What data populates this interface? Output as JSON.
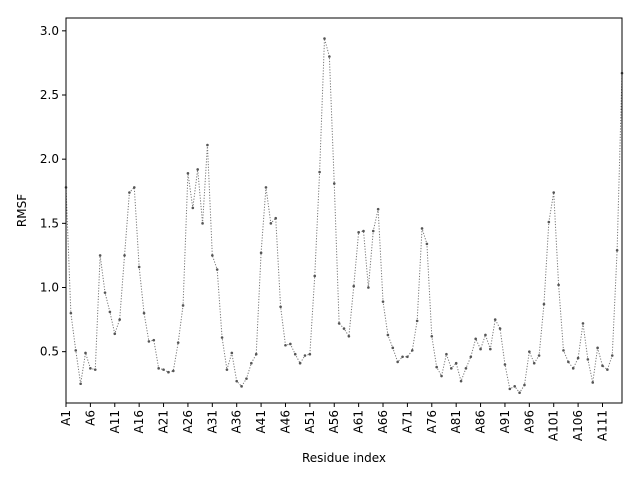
{
  "chart_data": {
    "type": "line",
    "title": "",
    "xlabel": "Residue index",
    "ylabel": "RMSF",
    "x_tick_labels": [
      "A1",
      "A6",
      "A11",
      "A16",
      "A21",
      "A26",
      "A31",
      "A36",
      "A41",
      "A46",
      "A51",
      "A56",
      "A61",
      "A66",
      "A71",
      "A76",
      "A81",
      "A86",
      "A91",
      "A96",
      "A101",
      "A106",
      "A111"
    ],
    "x_tick_positions": [
      1,
      6,
      11,
      16,
      21,
      26,
      31,
      36,
      41,
      46,
      51,
      56,
      61,
      66,
      71,
      76,
      81,
      86,
      91,
      96,
      101,
      106,
      111
    ],
    "xlim": [
      1,
      115
    ],
    "y_ticks": [
      0.5,
      1.0,
      1.5,
      2.0,
      2.5,
      3.0
    ],
    "y_tick_labels": [
      "0.5",
      "1.0",
      "1.5",
      "2.0",
      "2.5",
      "3.0"
    ],
    "ylim": [
      0.1,
      3.1
    ],
    "grid": false,
    "legend": false,
    "line_style": "dotted",
    "marker": "small-dot",
    "colors": {
      "series": "#777777",
      "axis": "#000000",
      "background": "#ffffff"
    },
    "series": [
      {
        "x": [
          1,
          2,
          3,
          4,
          5,
          6,
          7,
          8,
          9,
          10,
          11,
          12,
          13,
          14,
          15,
          16,
          17,
          18,
          19,
          20,
          21,
          22,
          23,
          24,
          25,
          26,
          27,
          28,
          29,
          30,
          31,
          32,
          33,
          34,
          35,
          36,
          37,
          38,
          39,
          40,
          41,
          42,
          43,
          44,
          45,
          46,
          47,
          48,
          49,
          50,
          51,
          52,
          53,
          54,
          55,
          56,
          57,
          58,
          59,
          60,
          61,
          62,
          63,
          64,
          65,
          66,
          67,
          68,
          69,
          70,
          71,
          72,
          73,
          74,
          75,
          76,
          77,
          78,
          79,
          80,
          81,
          82,
          83,
          84,
          85,
          86,
          87,
          88,
          89,
          90,
          91,
          92,
          93,
          94,
          95,
          96,
          97,
          98,
          99,
          100,
          101,
          102,
          103,
          104,
          105,
          106,
          107,
          108,
          109,
          110,
          111,
          112,
          113,
          114,
          115
        ],
        "y": [
          1.78,
          0.8,
          0.51,
          0.25,
          0.49,
          0.37,
          0.36,
          1.25,
          0.96,
          0.81,
          0.64,
          0.75,
          1.25,
          1.74,
          1.78,
          1.16,
          0.8,
          0.58,
          0.59,
          0.37,
          0.36,
          0.34,
          0.35,
          0.57,
          0.86,
          1.89,
          1.62,
          1.92,
          1.5,
          2.11,
          1.25,
          1.14,
          0.61,
          0.36,
          0.49,
          0.27,
          0.23,
          0.29,
          0.41,
          0.48,
          1.27,
          1.78,
          1.5,
          1.54,
          0.85,
          0.55,
          0.56,
          0.48,
          0.41,
          0.47,
          0.48,
          1.09,
          1.9,
          2.94,
          2.8,
          1.81,
          0.72,
          0.68,
          0.62,
          1.01,
          1.43,
          1.44,
          1.0,
          1.44,
          1.61,
          0.89,
          0.63,
          0.53,
          0.42,
          0.46,
          0.46,
          0.51,
          0.74,
          1.46,
          1.34,
          0.62,
          0.38,
          0.31,
          0.48,
          0.37,
          0.41,
          0.27,
          0.37,
          0.46,
          0.6,
          0.52,
          0.63,
          0.52,
          0.75,
          0.68,
          0.4,
          0.21,
          0.23,
          0.18,
          0.24,
          0.5,
          0.41,
          0.47,
          0.87,
          1.51,
          1.74,
          1.02,
          0.51,
          0.42,
          0.37,
          0.45,
          0.72,
          0.44,
          0.26,
          0.53,
          0.39,
          0.36,
          0.47,
          1.29,
          2.67
        ]
      }
    ]
  }
}
